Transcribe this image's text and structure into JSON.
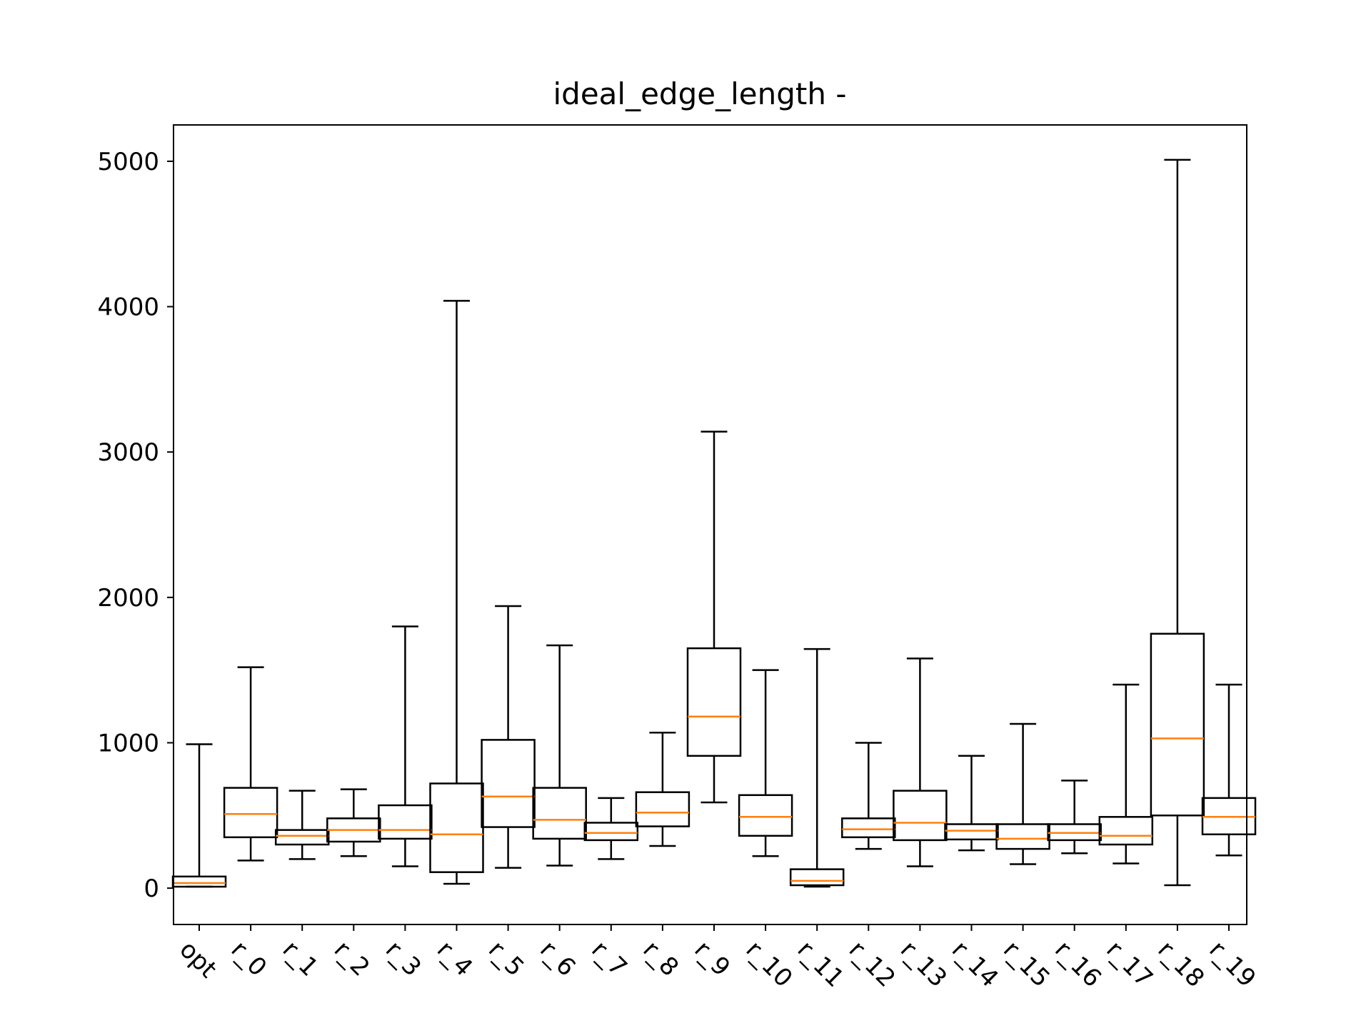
{
  "chart_data": {
    "type": "box",
    "title": "ideal_edge_length -",
    "xlabel": "",
    "ylabel": "",
    "ylim": [
      -250,
      5250
    ],
    "yticks": [
      0,
      1000,
      2000,
      3000,
      4000,
      5000
    ],
    "grid": false,
    "colors": {
      "box": "#000000",
      "median": "#ff7f0e",
      "background": "#ffffff"
    },
    "categories": [
      "opt",
      "r_0",
      "r_1",
      "r_2",
      "r_3",
      "r_4",
      "r_5",
      "r_6",
      "r_7",
      "r_8",
      "r_9",
      "r_10",
      "r_11",
      "r_12",
      "r_13",
      "r_14",
      "r_15",
      "r_16",
      "r_17",
      "r_18",
      "r_19"
    ],
    "boxes": [
      {
        "whislo": 10,
        "q1": 10,
        "med": 35,
        "q3": 80,
        "whishi": 990
      },
      {
        "whislo": 190,
        "q1": 350,
        "med": 510,
        "q3": 690,
        "whishi": 1520
      },
      {
        "whislo": 200,
        "q1": 300,
        "med": 360,
        "q3": 400,
        "whishi": 670
      },
      {
        "whislo": 220,
        "q1": 320,
        "med": 400,
        "q3": 480,
        "whishi": 680
      },
      {
        "whislo": 150,
        "q1": 340,
        "med": 400,
        "q3": 570,
        "whishi": 1800
      },
      {
        "whislo": 30,
        "q1": 110,
        "med": 370,
        "q3": 720,
        "whishi": 4040
      },
      {
        "whislo": 140,
        "q1": 420,
        "med": 630,
        "q3": 1020,
        "whishi": 1940
      },
      {
        "whislo": 155,
        "q1": 340,
        "med": 470,
        "q3": 690,
        "whishi": 1670
      },
      {
        "whislo": 200,
        "q1": 330,
        "med": 380,
        "q3": 450,
        "whishi": 620
      },
      {
        "whislo": 290,
        "q1": 425,
        "med": 520,
        "q3": 660,
        "whishi": 1070
      },
      {
        "whislo": 590,
        "q1": 910,
        "med": 1180,
        "q3": 1650,
        "whishi": 3140
      },
      {
        "whislo": 220,
        "q1": 360,
        "med": 490,
        "q3": 640,
        "whishi": 1500
      },
      {
        "whislo": 10,
        "q1": 20,
        "med": 50,
        "q3": 130,
        "whishi": 1645
      },
      {
        "whislo": 270,
        "q1": 350,
        "med": 405,
        "q3": 480,
        "whishi": 1000
      },
      {
        "whislo": 150,
        "q1": 330,
        "med": 450,
        "q3": 670,
        "whishi": 1580
      },
      {
        "whislo": 260,
        "q1": 335,
        "med": 395,
        "q3": 440,
        "whishi": 910
      },
      {
        "whislo": 165,
        "q1": 270,
        "med": 340,
        "q3": 440,
        "whishi": 1130
      },
      {
        "whislo": 240,
        "q1": 330,
        "med": 380,
        "q3": 440,
        "whishi": 740
      },
      {
        "whislo": 170,
        "q1": 300,
        "med": 360,
        "q3": 490,
        "whishi": 1400
      },
      {
        "whislo": 20,
        "q1": 500,
        "med": 1030,
        "q3": 1750,
        "whishi": 5010
      },
      {
        "whislo": 225,
        "q1": 370,
        "med": 490,
        "q3": 620,
        "whishi": 1400
      }
    ]
  }
}
